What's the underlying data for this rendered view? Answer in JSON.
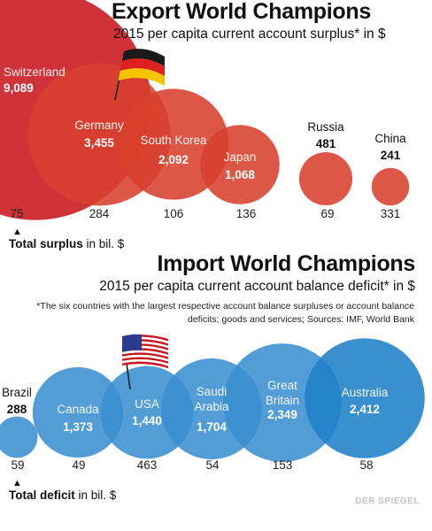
{
  "chart_data": [
    {
      "type": "bubble",
      "title": "Export World Champions",
      "subtitle": "2015 per capita current account surplus* in $",
      "categories": [
        "Switzerland",
        "Germany",
        "South Korea",
        "Japan",
        "Russia",
        "China"
      ],
      "values": [
        9089,
        3455,
        2092,
        1068,
        481,
        241
      ],
      "value_labels": [
        "9,089",
        "3,455",
        "2,092",
        "1,068",
        "481",
        "241"
      ],
      "totals": [
        "75",
        "284",
        "106",
        "136",
        "69",
        "331"
      ],
      "total_label": "Total surplus",
      "total_unit": "in bil. $",
      "colors": {
        "first": "#c8161d",
        "rest": "#d8402e"
      }
    },
    {
      "type": "bubble",
      "title": "Import World Champions",
      "subtitle": "2015 per capita current account balance deficit*  in $",
      "footnote": "*The six countries with the largest respective account balance surpluses or account balance deficits; goods and services; Sources: IMF, World Bank",
      "categories": [
        "Brazil",
        "Canada",
        "USA",
        "Saudi Arabia",
        "Great Britain",
        "Australia"
      ],
      "label_lines": [
        [
          "Brazil"
        ],
        [
          "Canada"
        ],
        [
          "USA"
        ],
        [
          "Saudi",
          "Arabia"
        ],
        [
          "Great",
          "Britain"
        ],
        [
          "Australia"
        ]
      ],
      "values": [
        288,
        1373,
        1440,
        1704,
        2349,
        2412
      ],
      "value_labels": [
        "288",
        "1,373",
        "1,440",
        "1,704",
        "2,349",
        "2,412"
      ],
      "totals": [
        "59",
        "49",
        "463",
        "54",
        "153",
        "58"
      ],
      "total_label": "Total deficit",
      "total_unit": "in bil. $",
      "colors": {
        "fill": "#3b8fd0",
        "last": "#1f80c8"
      }
    }
  ],
  "credit": "DER SPIEGEL"
}
